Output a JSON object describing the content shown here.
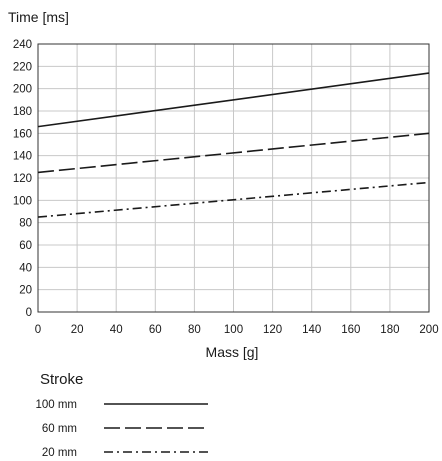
{
  "chart_data": {
    "type": "line",
    "ylabel": "Time [ms]",
    "xlabel": "Mass [g]",
    "xlim": [
      0,
      200
    ],
    "ylim": [
      0,
      240
    ],
    "x_ticks": [
      0,
      20,
      40,
      60,
      80,
      100,
      120,
      140,
      160,
      180,
      200
    ],
    "y_ticks": [
      0,
      20,
      40,
      60,
      80,
      100,
      120,
      140,
      160,
      180,
      200,
      220,
      240
    ],
    "grid": true,
    "x": [
      0,
      200
    ],
    "series": [
      {
        "name": "100 mm",
        "dash": "solid",
        "values": [
          166,
          214
        ]
      },
      {
        "name": "60 mm",
        "dash": "long-dash",
        "values": [
          125,
          160
        ]
      },
      {
        "name": "20 mm",
        "dash": "dash-dot",
        "values": [
          85,
          116
        ]
      }
    ],
    "legend": {
      "title": "Stroke",
      "placement": "bottom-left"
    }
  }
}
